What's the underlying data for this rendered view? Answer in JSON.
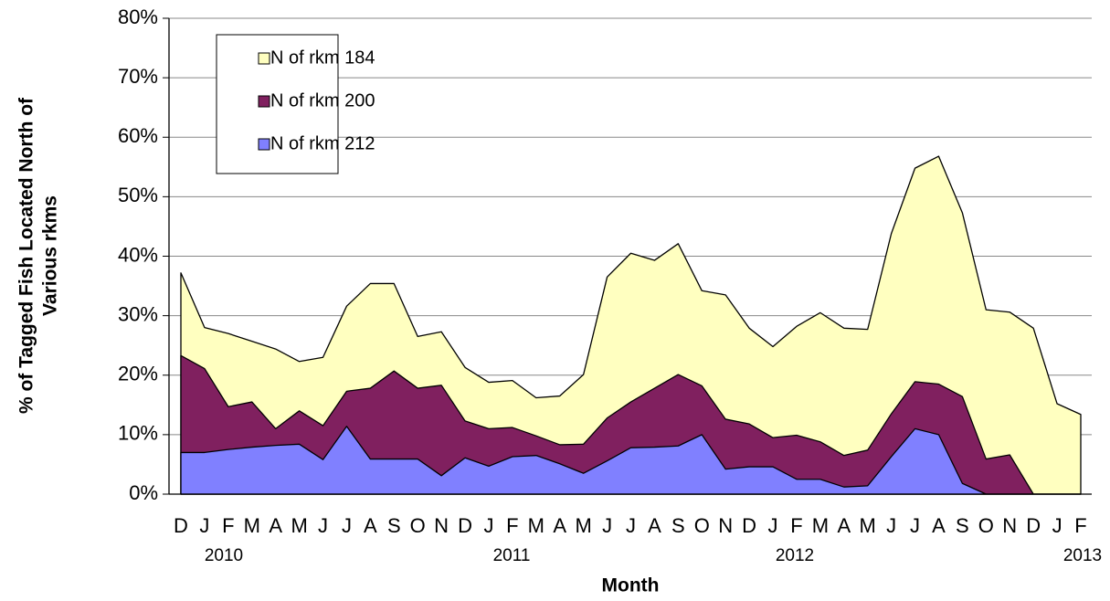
{
  "chart_data": {
    "type": "area",
    "categories": [
      "D",
      "J",
      "F",
      "M",
      "A",
      "M",
      "J",
      "J",
      "A",
      "S",
      "O",
      "N",
      "D",
      "J",
      "F",
      "M",
      "A",
      "M",
      "J",
      "J",
      "A",
      "S",
      "O",
      "N",
      "D",
      "J",
      "F",
      "M",
      "A",
      "M",
      "J",
      "J",
      "A",
      "S",
      "O",
      "N",
      "D",
      "J",
      "F"
    ],
    "year_labels": [
      "2010",
      "2011",
      "2012",
      "2013"
    ],
    "xlabel": "Month",
    "ylabel": [
      "% of Tagged Fish Located North of",
      "Various rkms"
    ],
    "ylim": [
      0,
      80
    ],
    "yticks": [
      {
        "value": 0,
        "label": "0%"
      },
      {
        "value": 10,
        "label": "10%"
      },
      {
        "value": 20,
        "label": "20%"
      },
      {
        "value": 30,
        "label": "30%"
      },
      {
        "value": 40,
        "label": "40%"
      },
      {
        "value": 50,
        "label": "50%"
      },
      {
        "value": 60,
        "label": "60%"
      },
      {
        "value": 70,
        "label": "70%"
      },
      {
        "value": 80,
        "label": "80%"
      }
    ],
    "grid": true,
    "series": [
      {
        "name": "N of rkm 184",
        "color": "#ffffc0",
        "values": [
          37.2,
          28,
          27,
          25.7,
          24.4,
          22.3,
          23,
          31.6,
          35.4,
          35.4,
          26.5,
          27.3,
          21.3,
          18.8,
          19.1,
          16.2,
          16.5,
          20.1,
          36.5,
          40.5,
          39.3,
          42.1,
          34.2,
          33.5,
          27.9,
          24.8,
          28.2,
          30.5,
          27.9,
          27.7,
          43.8,
          54.8,
          56.8,
          47.3,
          31,
          30.6,
          27.9,
          15.2,
          13.4
        ]
      },
      {
        "name": "N of rkm 200",
        "color": "#80205f",
        "values": [
          23.3,
          21.1,
          14.7,
          15.5,
          11,
          14,
          11.5,
          17.3,
          17.8,
          20.7,
          17.8,
          18.3,
          12.3,
          11,
          11.2,
          9.8,
          8.3,
          8.4,
          12.8,
          15.5,
          17.8,
          20.1,
          18.2,
          12.6,
          11.8,
          9.5,
          9.9,
          8.8,
          6.5,
          7.4,
          13.5,
          18.9,
          18.5,
          16.4,
          5.9,
          6.6,
          0,
          0,
          0
        ]
      },
      {
        "name": "N of rkm 212",
        "color": "#8080ff",
        "values": [
          7,
          7,
          7.5,
          7.9,
          8.2,
          8.4,
          5.8,
          11.4,
          5.9,
          5.9,
          5.9,
          3.1,
          6.1,
          4.7,
          6.3,
          6.5,
          5.1,
          3.5,
          5.6,
          7.8,
          7.9,
          8.1,
          10,
          4.2,
          4.6,
          4.6,
          2.5,
          2.5,
          1.2,
          1.4,
          6.3,
          11,
          10,
          1.8,
          0,
          0,
          0,
          0,
          0
        ]
      }
    ]
  }
}
